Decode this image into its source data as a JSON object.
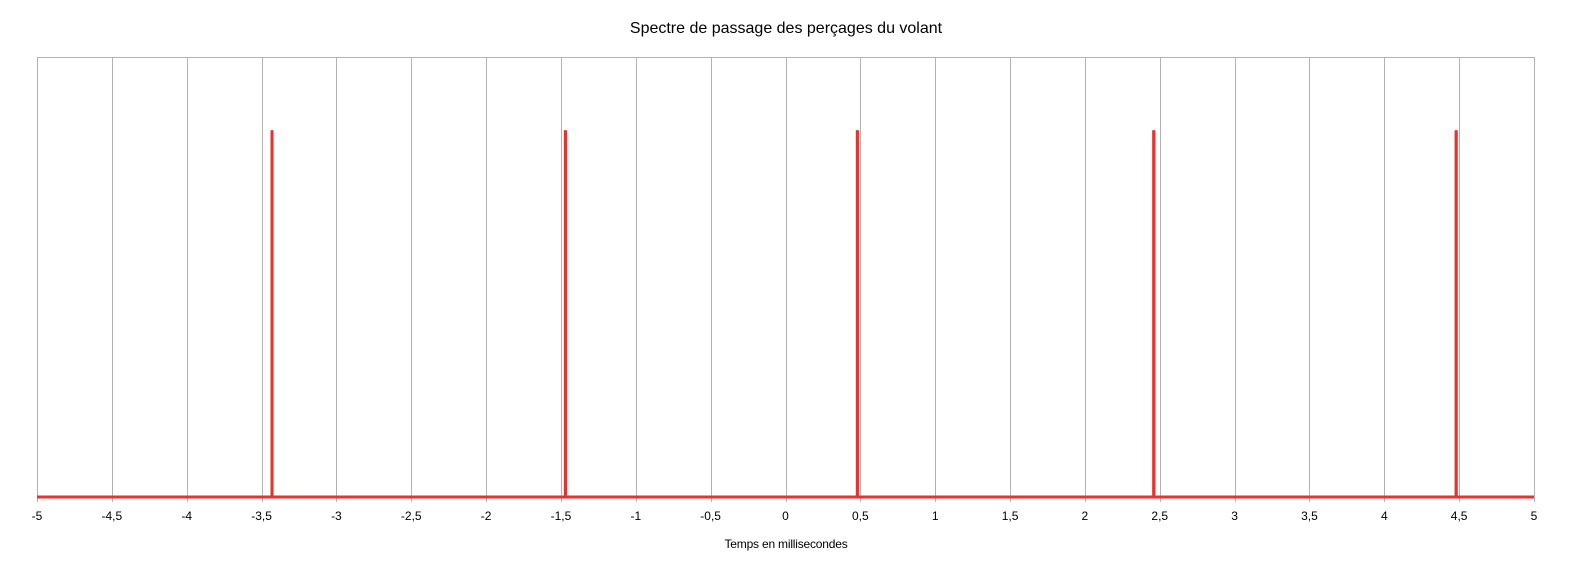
{
  "chart_data": {
    "type": "line",
    "title": "Spectre de passage des perçages du volant",
    "xlabel": "Temps en millisecondes",
    "ylabel": "",
    "xlim": [
      -5,
      5
    ],
    "ylim": [
      0,
      1.2
    ],
    "x_ticks": [
      -5,
      -4.5,
      -4,
      -3.5,
      -3,
      -2.5,
      -2,
      -1.5,
      -1,
      -0.5,
      0,
      0.5,
      1,
      1.5,
      2,
      2.5,
      3,
      3.5,
      4,
      4.5,
      5
    ],
    "x_tick_labels": [
      "-5",
      "-4,5",
      "-4",
      "-3,5",
      "-3",
      "-2,5",
      "-2",
      "-1,5",
      "-1",
      "-0,5",
      "0",
      "0,5",
      "1",
      "1,5",
      "2",
      "2,5",
      "3",
      "3,5",
      "4",
      "4,5",
      "5"
    ],
    "grid": {
      "vertical": true,
      "horizontal": false
    },
    "legend": "none",
    "series": [
      {
        "color": "#e8322d",
        "baseline": 0,
        "pulses": [
          {
            "x": -3.43,
            "y": 1
          },
          {
            "x": -1.47,
            "y": 1
          },
          {
            "x": 0.48,
            "y": 1
          },
          {
            "x": 2.46,
            "y": 1
          },
          {
            "x": 4.48,
            "y": 1
          }
        ]
      }
    ]
  }
}
